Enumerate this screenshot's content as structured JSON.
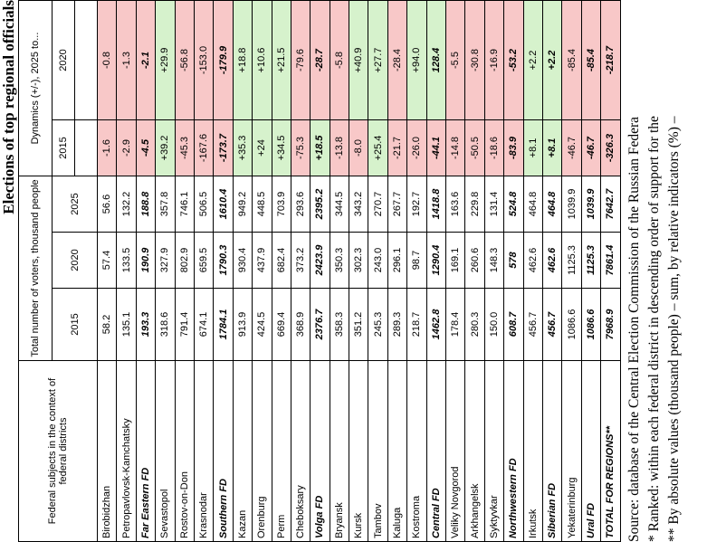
{
  "title": "Elections of top regional officials",
  "header": {
    "subject": "Federal subjects in the context of federal districts",
    "total": "Total number of voters, thousand people",
    "total_years": [
      "2015",
      "2020",
      "2025"
    ],
    "dynamics": "Dynamics (+/-), 2025 to...",
    "dynamics_years": [
      "2015",
      "2020"
    ]
  },
  "rows": [
    {
      "cells": [
        "Birobidzhan",
        "58.2",
        "57.4",
        "56.6",
        "-1.6",
        "-0.8"
      ]
    },
    {
      "cells": [
        "Petropavlovsk-Kamchatsky",
        "135.1",
        "133.5",
        "132.2",
        "-2.9",
        "-1.3"
      ]
    },
    {
      "cells": [
        "Far Eastern FD",
        "193.3",
        "190.9",
        "188.8",
        "-4.5",
        "-2.1"
      ],
      "subtotal": true
    },
    {
      "cells": [
        "Sevastopol",
        "318.6",
        "327.9",
        "357.8",
        "+39.2",
        "+29.9"
      ]
    },
    {
      "cells": [
        "Rostov-on-Don",
        "791.4",
        "802.9",
        "746.1",
        "-45.3",
        "-56.8"
      ]
    },
    {
      "cells": [
        "Krasnodar",
        "674.1",
        "659.5",
        "506.5",
        "-167.6",
        "-153.0"
      ]
    },
    {
      "cells": [
        "Southern FD",
        "1784.1",
        "1790.3",
        "1610.4",
        "-173.7",
        "-179.9"
      ],
      "subtotal": true
    },
    {
      "cells": [
        "Kazan",
        "913.9",
        "930.4",
        "949.2",
        "+35.3",
        "+18.8"
      ]
    },
    {
      "cells": [
        "Orenburg",
        "424.5",
        "437.9",
        "448.5",
        "+24",
        "+10.6"
      ]
    },
    {
      "cells": [
        "Perm",
        "669.4",
        "682.4",
        "703.9",
        "+34.5",
        "+21.5"
      ]
    },
    {
      "cells": [
        "Cheboksary",
        "368.9",
        "373.2",
        "293.6",
        "-75.3",
        "-79.6"
      ]
    },
    {
      "cells": [
        "Volga FD",
        "2376.7",
        "2423.9",
        "2395.2",
        "+18.5",
        "-28.7"
      ],
      "subtotal": true
    },
    {
      "cells": [
        "Bryansk",
        "358.3",
        "350.3",
        "344.5",
        "-13.8",
        "-5.8"
      ]
    },
    {
      "cells": [
        "Kursk",
        "351.2",
        "302.3",
        "343.2",
        "-8.0",
        "+40.9"
      ]
    },
    {
      "cells": [
        "Tambov",
        "245.3",
        "243.0",
        "270.7",
        "+25.4",
        "+27.7"
      ]
    },
    {
      "cells": [
        "Kaluga",
        "289.3",
        "296.1",
        "267.7",
        "-21.7",
        "-28.4"
      ]
    },
    {
      "cells": [
        "Kostroma",
        "218.7",
        "98.7",
        "192.7",
        "-26.0",
        "+94.0"
      ]
    },
    {
      "cells": [
        "Central FD",
        "1462.8",
        "1290.4",
        "1418.8",
        "-44.1",
        "128.4"
      ],
      "subtotal": true
    },
    {
      "cells": [
        "Veliky Novgorod",
        "178.4",
        "169.1",
        "163.6",
        "-14.8",
        "-5.5"
      ]
    },
    {
      "cells": [
        "Arkhangelsk",
        "280.3",
        "260.6",
        "229.8",
        "-50.5",
        "-30.8"
      ]
    },
    {
      "cells": [
        "Syktyvkar",
        "150.0",
        "148.3",
        "131.4",
        "-18.6",
        "-16.9"
      ]
    },
    {
      "cells": [
        "Northwestern FD",
        "608.7",
        "578",
        "524.8",
        "-83.9",
        "-53.2"
      ],
      "subtotal": true
    },
    {
      "cells": [
        "Irkutsk",
        "456.7",
        "462.6",
        "464.8",
        "+8.1",
        "+2.2"
      ]
    },
    {
      "cells": [
        "Siberian FD",
        "456.7",
        "462.6",
        "464.8",
        "+8.1",
        "+2.2"
      ],
      "subtotal": true
    },
    {
      "cells": [
        "Yekaterinburg",
        "1086.6",
        "1125.3",
        "1039.9",
        "-46.7",
        "-85.4"
      ]
    },
    {
      "cells": [
        "Ural FD",
        "1086.6",
        "1125.3",
        "1039.9",
        "-46.7",
        "-85.4"
      ],
      "subtotal": true
    },
    {
      "cells": [
        "TOTAL FOR REGIONS**",
        "7968.9",
        "7861.4",
        "7642.7",
        "-326.3",
        "-218.7"
      ],
      "subtotal": true
    }
  ],
  "footnotes": [
    "Source: database of the Central Election Commission of the Russian Federa",
    "* Ranked: within each federal district in descending order of support for the",
    "** By absolute values (thousand people) – sum, by relative indicators (%) –"
  ]
}
